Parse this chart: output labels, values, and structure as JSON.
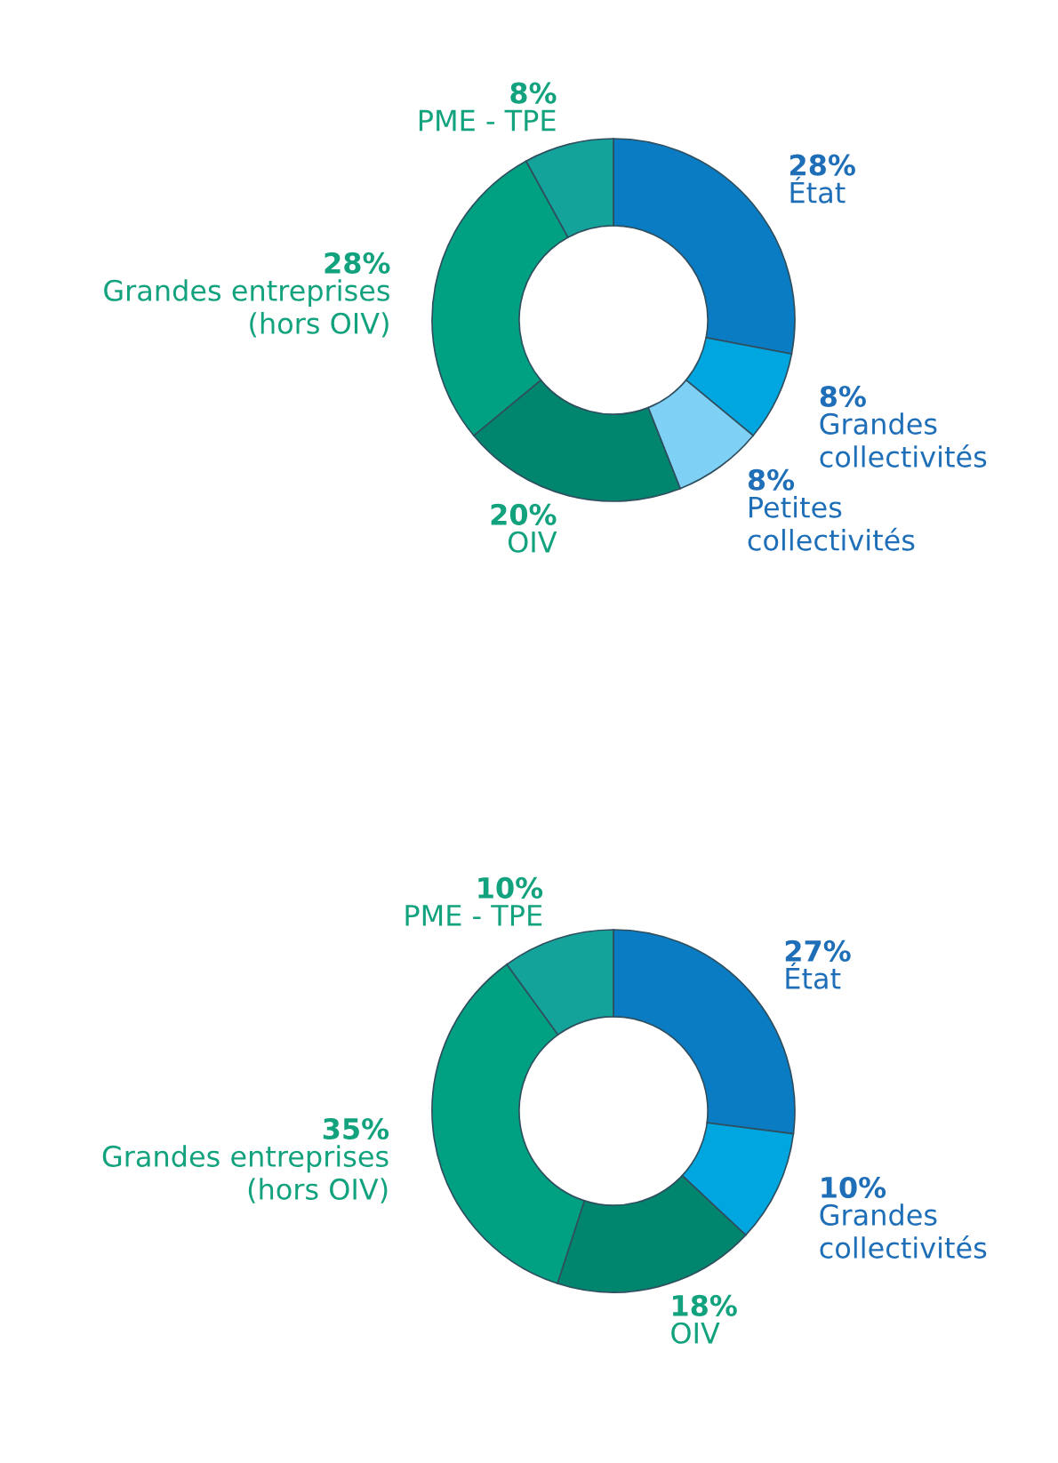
{
  "chart_data": [
    {
      "type": "donut",
      "categories": [
        "État",
        "Grandes\ncollectivités",
        "Petites\ncollectivités",
        "OIV",
        "Grandes entreprises\n(hors OIV)",
        "PME - TPE"
      ],
      "values": [
        28,
        8,
        8,
        20,
        28,
        8
      ],
      "value_labels": [
        "28%",
        "8%",
        "8%",
        "20%",
        "28%",
        "8%"
      ],
      "colors": [
        "#0a7cc4",
        "#00a6e0",
        "#7fd0f5",
        "#00856e",
        "#00a082",
        "#13a39a"
      ]
    },
    {
      "type": "donut",
      "categories": [
        "État",
        "Grandes\ncollectivités",
        "OIV",
        "Grandes entreprises\n(hors OIV)",
        "PME - TPE"
      ],
      "values": [
        27,
        10,
        18,
        35,
        10
      ],
      "value_labels": [
        "27%",
        "10%",
        "18%",
        "35%",
        "10%"
      ],
      "colors": [
        "#0a7cc4",
        "#00a6e0",
        "#00856e",
        "#00a082",
        "#13a39a"
      ]
    }
  ]
}
